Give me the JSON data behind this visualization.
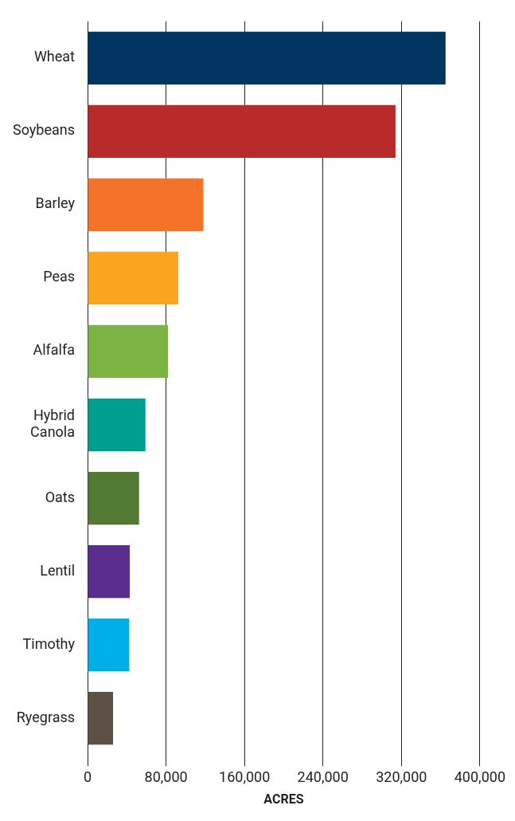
{
  "chart_data": {
    "type": "bar",
    "orientation": "horizontal",
    "xlabel": "ACRES",
    "categories": [
      "Wheat",
      "Soybeans",
      "Barley",
      "Peas",
      "Alfalfa",
      "Hybrid Canola",
      "Oats",
      "Lentil",
      "Timothy",
      "Ryegrass"
    ],
    "values": [
      365000,
      314000,
      118000,
      92500,
      82000,
      59000,
      52500,
      43000,
      42500,
      26000
    ],
    "colors": [
      "#003562",
      "#b92b2b",
      "#f47328",
      "#f9a51e",
      "#7cb342",
      "#009e8e",
      "#527a32",
      "#5b2d8e",
      "#00aee8",
      "#5e5044"
    ],
    "xlim": [
      0,
      400000
    ],
    "xticks": [
      {
        "value": 0,
        "label": "0"
      },
      {
        "value": 80000,
        "label": "80,000"
      },
      {
        "value": 160000,
        "label": "160,000"
      },
      {
        "value": 240000,
        "label": "240,000"
      },
      {
        "value": 320000,
        "label": "320,000"
      },
      {
        "value": 400000,
        "label": "400,000"
      }
    ],
    "grid": "x",
    "legend": false
  }
}
